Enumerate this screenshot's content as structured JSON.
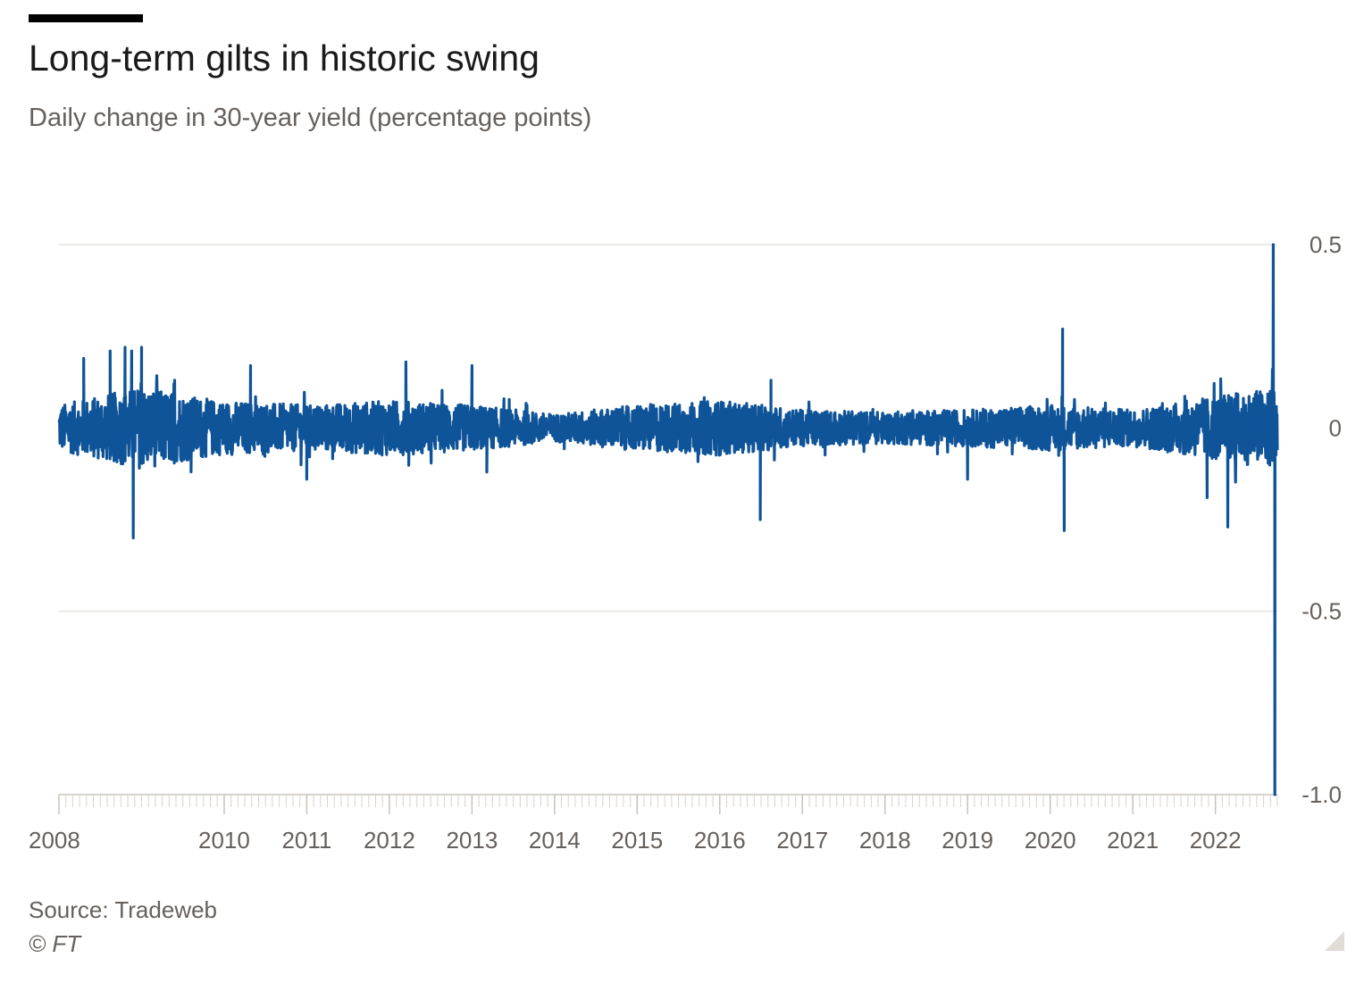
{
  "header": {
    "title": "Long-term gilts in historic swing",
    "subtitle": "Daily change in 30-year yield (percentage points)"
  },
  "footer": {
    "source": "Source: Tradeweb",
    "copyright": "© FT"
  },
  "colors": {
    "series": "#0f5499",
    "grid": "#e6e2dd",
    "text": "#66605c",
    "title": "#1a1a1a"
  },
  "chart_data": {
    "type": "line",
    "title": "Long-term gilts in historic swing",
    "subtitle": "Daily change in 30-year yield (percentage points)",
    "xlabel": "",
    "ylabel": "",
    "xlim": [
      2008.0,
      2022.75
    ],
    "ylim": [
      -1.0,
      0.5
    ],
    "y_axis_position": "right",
    "grid": "horizontal",
    "legend": "none",
    "x_ticks": [
      {
        "value": 2008,
        "label": "2008"
      },
      {
        "value": 2010,
        "label": "2010"
      },
      {
        "value": 2011,
        "label": "2011"
      },
      {
        "value": 2012,
        "label": "2012"
      },
      {
        "value": 2013,
        "label": "2013"
      },
      {
        "value": 2014,
        "label": "2014"
      },
      {
        "value": 2015,
        "label": "2015"
      },
      {
        "value": 2016,
        "label": "2016"
      },
      {
        "value": 2017,
        "label": "2017"
      },
      {
        "value": 2018,
        "label": "2018"
      },
      {
        "value": 2019,
        "label": "2019"
      },
      {
        "value": 2020,
        "label": "2020"
      },
      {
        "value": 2021,
        "label": "2021"
      },
      {
        "value": 2022,
        "label": "2022"
      }
    ],
    "y_ticks": [
      {
        "value": 0.5,
        "label": "0.5"
      },
      {
        "value": 0,
        "label": "0"
      },
      {
        "value": -0.5,
        "label": "-0.5"
      },
      {
        "value": -1.0,
        "label": "-1.0"
      }
    ],
    "series": [
      {
        "values_note_free": true,
        "noise_envelope": [
          {
            "x": 2008.0,
            "amp": 0.05
          },
          {
            "x": 2009.0,
            "amp": 0.09
          },
          {
            "x": 2009.9,
            "amp": 0.06
          },
          {
            "x": 2011.0,
            "amp": 0.05
          },
          {
            "x": 2012.0,
            "amp": 0.06
          },
          {
            "x": 2013.0,
            "amp": 0.05
          },
          {
            "x": 2014.0,
            "amp": 0.03
          },
          {
            "x": 2015.0,
            "amp": 0.05
          },
          {
            "x": 2016.0,
            "amp": 0.06
          },
          {
            "x": 2017.0,
            "amp": 0.04
          },
          {
            "x": 2018.0,
            "amp": 0.035
          },
          {
            "x": 2019.0,
            "amp": 0.04
          },
          {
            "x": 2020.0,
            "amp": 0.05
          },
          {
            "x": 2021.0,
            "amp": 0.04
          },
          {
            "x": 2022.0,
            "amp": 0.07
          },
          {
            "x": 2022.75,
            "amp": 0.09
          }
        ],
        "spikes": [
          {
            "x": 2008.3,
            "y": 0.19
          },
          {
            "x": 2008.62,
            "y": 0.21
          },
          {
            "x": 2008.8,
            "y": 0.22
          },
          {
            "x": 2008.88,
            "y": 0.21
          },
          {
            "x": 2008.9,
            "y": -0.3
          },
          {
            "x": 2009.0,
            "y": 0.22
          },
          {
            "x": 2009.4,
            "y": 0.13
          },
          {
            "x": 2010.32,
            "y": 0.17
          },
          {
            "x": 2011.0,
            "y": -0.14
          },
          {
            "x": 2012.2,
            "y": 0.18
          },
          {
            "x": 2013.0,
            "y": 0.17
          },
          {
            "x": 2013.18,
            "y": -0.12
          },
          {
            "x": 2016.49,
            "y": -0.25
          },
          {
            "x": 2016.62,
            "y": 0.13
          },
          {
            "x": 2019.0,
            "y": -0.14
          },
          {
            "x": 2020.15,
            "y": 0.27
          },
          {
            "x": 2020.17,
            "y": -0.28
          },
          {
            "x": 2021.9,
            "y": -0.19
          },
          {
            "x": 2022.15,
            "y": -0.27
          },
          {
            "x": 2022.7,
            "y": 0.5
          },
          {
            "x": 2022.72,
            "y": -1.0
          },
          {
            "x": 2022.69,
            "y": 0.16
          }
        ]
      }
    ]
  }
}
